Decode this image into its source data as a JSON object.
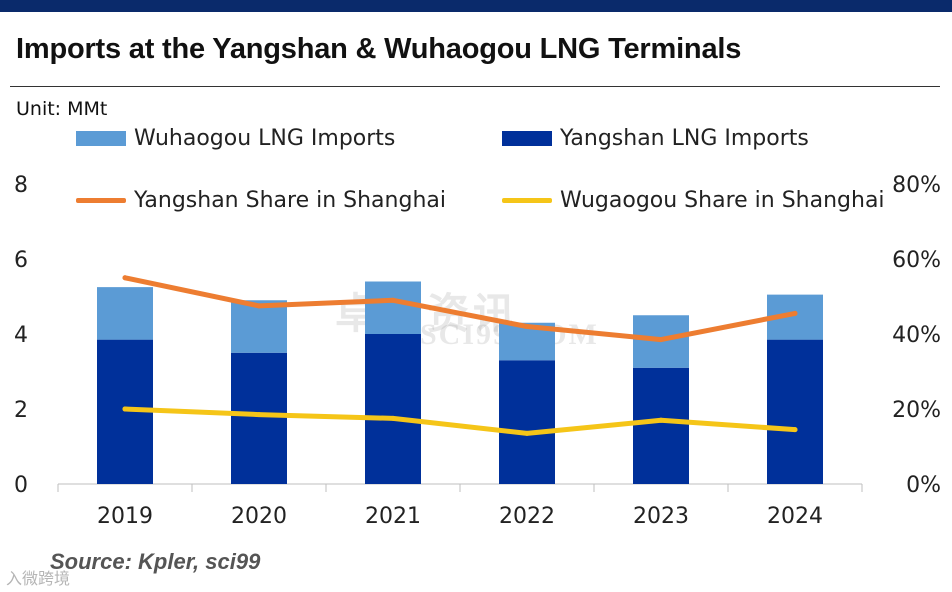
{
  "header": {
    "title": "Imports at the Yangshan & Wuhaogou LNG Terminals",
    "unit_label": "Unit: MMt"
  },
  "colors": {
    "top_bar": "#0a2a6b",
    "wuhaogou_bar": "#5b9bd5",
    "yangshan_bar": "#00309a",
    "yangshan_share_line": "#ed7d31",
    "wugaogou_share_line": "#f5c518"
  },
  "watermark": {
    "text": "卓创资讯",
    "subtext": "SCI99.COM"
  },
  "corner_logo": "入微跨境",
  "footer": {
    "source": "Source: Kpler, sci99"
  },
  "chart_data": {
    "type": "bar",
    "stacked": true,
    "categories": [
      "2019",
      "2020",
      "2021",
      "2022",
      "2023",
      "2024"
    ],
    "series": [
      {
        "name": "Yangshan LNG Imports",
        "kind": "bar",
        "axis": "left",
        "values": [
          3.85,
          3.5,
          4.0,
          3.3,
          3.1,
          3.85
        ]
      },
      {
        "name": "Wuhaogou LNG Imports",
        "kind": "bar",
        "axis": "left",
        "values": [
          1.4,
          1.4,
          1.4,
          1.0,
          1.4,
          1.2
        ]
      },
      {
        "name": "Yangshan Share in Shanghai",
        "kind": "line",
        "axis": "right",
        "values": [
          55,
          47.5,
          49,
          42,
          38.5,
          45.5
        ]
      },
      {
        "name": "Wugaogou Share in Shanghai",
        "kind": "line",
        "axis": "right",
        "values": [
          20,
          18.5,
          17.5,
          13.5,
          17,
          14.5
        ]
      }
    ],
    "legend": [
      "Wuhaogou LNG Imports",
      "Yangshan LNG Imports",
      "Yangshan Share in Shanghai",
      "Wugaogou Share in Shanghai"
    ],
    "left_axis": {
      "min": 0,
      "max": 8,
      "ticks": [
        "0",
        "2",
        "4",
        "6",
        "8"
      ]
    },
    "right_axis": {
      "min": 0,
      "max": 80,
      "ticks": [
        "0%",
        "20%",
        "40%",
        "60%",
        "80%"
      ]
    },
    "legend_position": "top",
    "grid": false
  }
}
